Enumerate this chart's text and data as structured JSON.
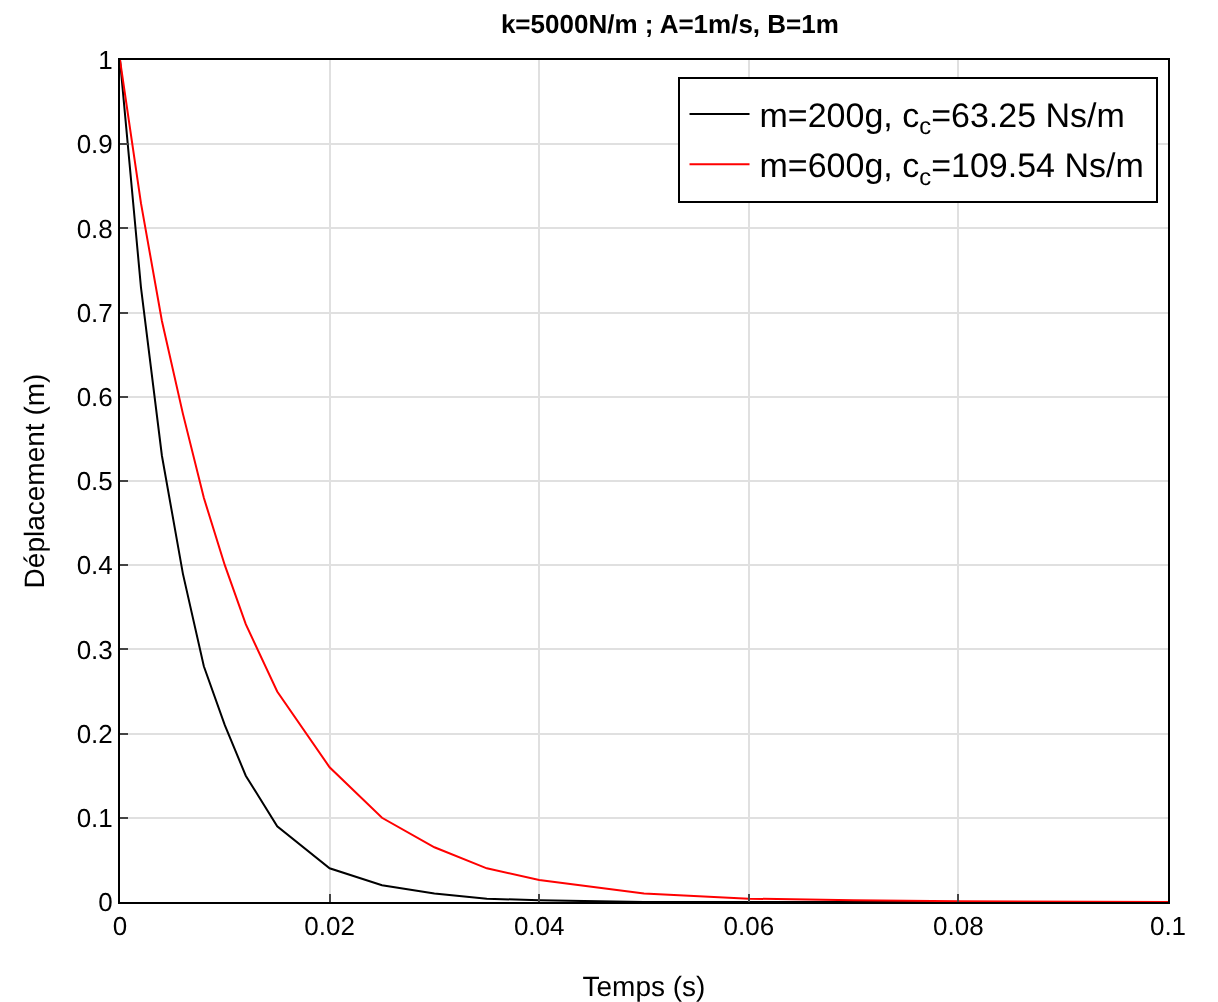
{
  "chart_data": {
    "type": "line",
    "title": "k=5000N/m ; A=1m/s, B=1m",
    "xlabel": "Temps (s)",
    "ylabel": "Déplacement (m)",
    "x": [
      0,
      0.002,
      0.004,
      0.006,
      0.008,
      0.01,
      0.012,
      0.015,
      0.02,
      0.025,
      0.03,
      0.035,
      0.04,
      0.05,
      0.06,
      0.07,
      0.08,
      0.1
    ],
    "series": [
      {
        "name": "m=200g, c$_{c}$=63.25 Ns/m",
        "color": "#000000",
        "values": [
          1,
          0.73,
          0.53,
          0.39,
          0.28,
          0.21,
          0.15,
          0.09,
          0.04,
          0.02,
          0.01,
          0.004,
          0.002,
          0,
          0,
          0,
          0,
          0
        ]
      },
      {
        "name": "m=600g, c$_{c}$=109.54 Ns/m",
        "color": "#ff0000",
        "values": [
          1,
          0.83,
          0.69,
          0.58,
          0.48,
          0.4,
          0.33,
          0.25,
          0.16,
          0.1,
          0.065,
          0.04,
          0.026,
          0.01,
          0.004,
          0.002,
          0.001,
          0
        ]
      }
    ],
    "xlim": [
      0,
      0.1
    ],
    "xticks": [
      0,
      0.02,
      0.04,
      0.06,
      0.08,
      0.1
    ],
    "ylim": [
      0,
      1
    ],
    "yticks": [
      0,
      0.1,
      0.2,
      0.3,
      0.4,
      0.5,
      0.6,
      0.7,
      0.8,
      0.9,
      1
    ],
    "grid": true,
    "legend": "top right",
    "marker": "none",
    "line_style": "solid"
  }
}
